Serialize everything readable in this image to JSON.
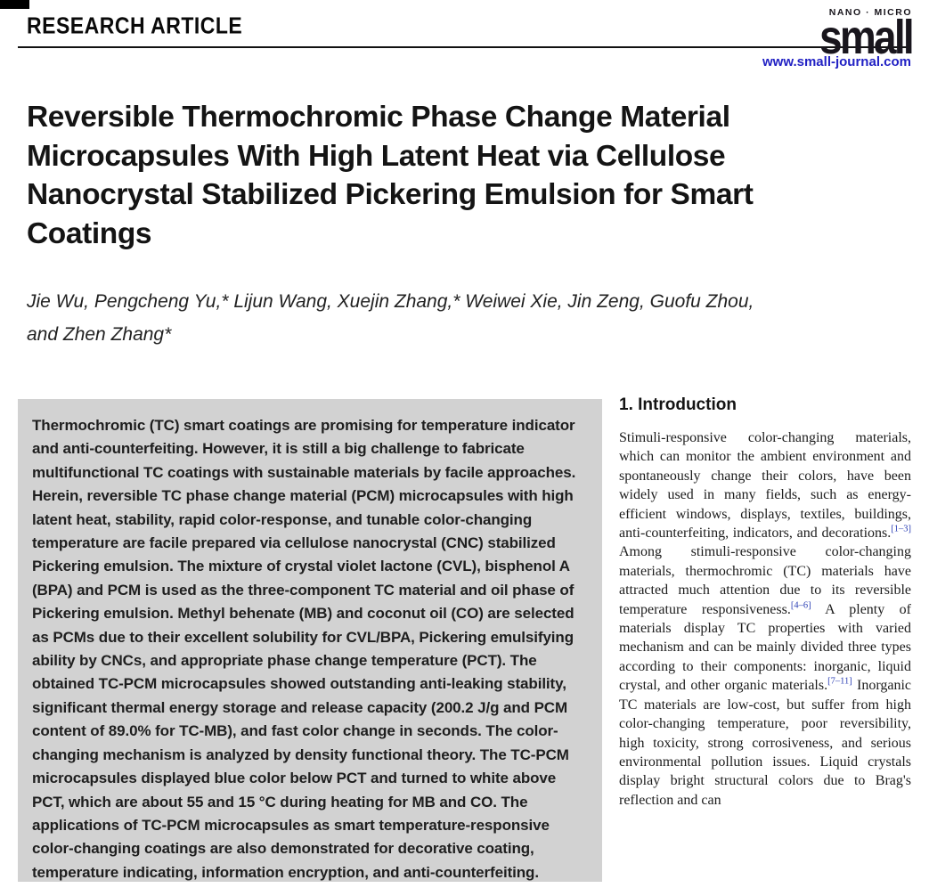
{
  "header": {
    "section_label": "RESEARCH ARTICLE",
    "journal": {
      "tagline": "NANO · MICRO",
      "wordmark": "small",
      "url": "www.small-journal.com"
    }
  },
  "title": {
    "lines": [
      "Reversible Thermochromic Phase Change Material",
      "Microcapsules With High Latent Heat via Cellulose",
      "Nanocrystal Stabilized Pickering Emulsion for Smart",
      "Coatings"
    ]
  },
  "authors": {
    "lines": [
      "Jie Wu, Pengcheng Yu,* Lijun Wang, Xuejin Zhang,* Weiwei Xie, Jin Zeng, Guofu Zhou,",
      "and Zhen Zhang*"
    ]
  },
  "abstract": {
    "text": "Thermochromic (TC) smart coatings are promising for temperature indicator and anti-counterfeiting. However, it is still a big challenge to fabricate multifunctional TC coatings with sustainable materials by facile approaches. Herein, reversible TC phase change material (PCM) microcapsules with high latent heat, stability, rapid color-response, and tunable color-changing temperature are facile prepared via cellulose nanocrystal (CNC) stabilized Pickering emulsion. The mixture of crystal violet lactone (CVL), bisphenol A (BPA) and PCM is used as the three-component TC material and oil phase of Pickering emulsion. Methyl behenate (MB) and coconut oil (CO) are selected as PCMs due to their excellent solubility for CVL/BPA, Pickering emulsifying ability by CNCs, and appropriate phase change temperature (PCT). The obtained TC-PCM microcapsules showed outstanding anti-leaking stability, significant thermal energy storage and release capacity (200.2 J/g and PCM content of 89.0% for TC-MB), and fast color change in seconds. The color-changing mechanism is analyzed by density functional theory. The TC-PCM microcapsules displayed blue color below PCT and turned to white above PCT, which are about 55 and 15 °C during heating for MB and CO. The applications of TC-PCM microcapsules as smart temperature-responsive color-changing coatings are also demonstrated for decorative coating, temperature indicating, information encryption, and anti-counterfeiting."
  },
  "introduction": {
    "heading": "1. Introduction",
    "segments": [
      {
        "type": "text",
        "value": "Stimuli-responsive color-changing materials, which can monitor the ambient environment and spontaneously change their colors, have been widely used in many fields, such as energy-efficient windows, displays, textiles, buildings, anti-counterfeiting, indicators, and decorations."
      },
      {
        "type": "cite",
        "value": "[1–3]"
      },
      {
        "type": "text",
        "value": " Among stimuli-responsive color-changing materials, thermochromic (TC) materials have attracted much attention due to its reversible temperature responsiveness."
      },
      {
        "type": "cite",
        "value": "[4–6]"
      },
      {
        "type": "text",
        "value": " A plenty of materials display TC properties with varied mechanism and can be mainly divided three types according to their components: inorganic, liquid crystal, and other organic materials."
      },
      {
        "type": "cite",
        "value": "[7–11]"
      },
      {
        "type": "text",
        "value": " Inorganic TC materials are low-cost, but suffer from high color-changing temperature, poor reversibility, high toxicity, strong corrosiveness, and serious environmental pollution issues. Liquid crystals display bright structural colors due to Brag's reflection and can"
      }
    ]
  },
  "colors": {
    "abstract_background": "#d2d2d2",
    "journal_url_blue": "#2121c4",
    "citation_blue": "#2b3fb4",
    "text_black": "#1a1a1a"
  }
}
